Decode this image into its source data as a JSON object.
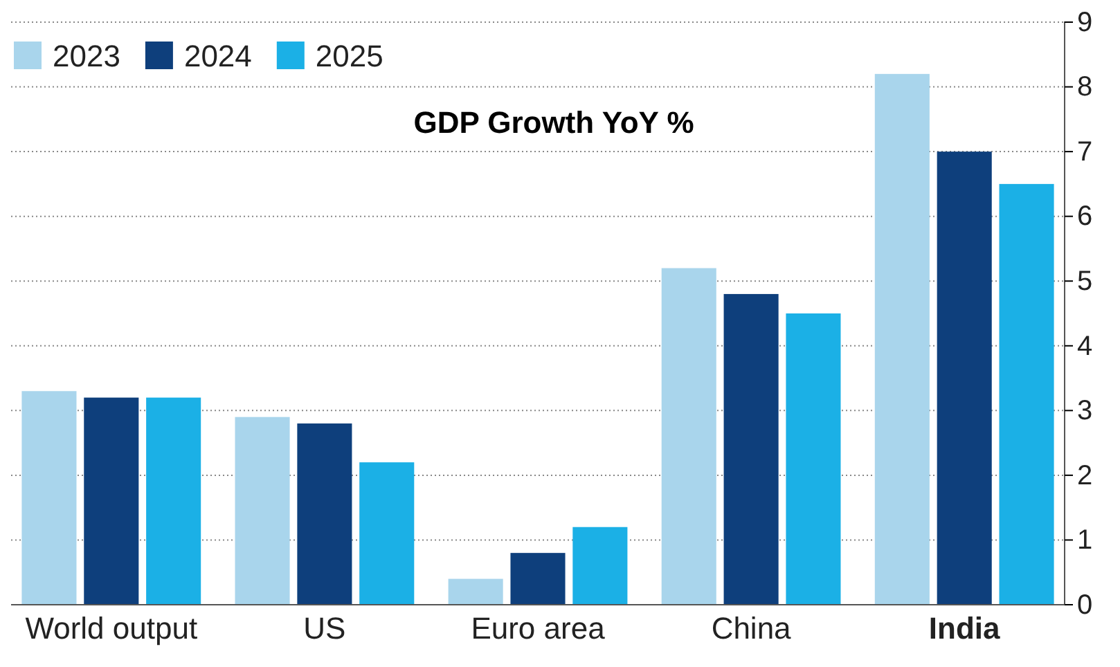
{
  "chart_data": {
    "type": "bar",
    "title": "GDP Growth YoY %",
    "categories": [
      "World output",
      "US",
      "Euro area",
      "China",
      "India"
    ],
    "series": [
      {
        "name": "2023",
        "color": "#a9d5ec",
        "values": [
          3.3,
          2.9,
          0.4,
          5.2,
          8.2
        ]
      },
      {
        "name": "2024",
        "color": "#0e3f7c",
        "values": [
          3.2,
          2.8,
          0.8,
          4.8,
          7.0
        ]
      },
      {
        "name": "2025",
        "color": "#1bb0e6",
        "values": [
          3.2,
          2.2,
          1.2,
          4.5,
          6.5
        ]
      }
    ],
    "ylim": [
      0,
      9
    ],
    "yticks": [
      0,
      1,
      2,
      3,
      4,
      5,
      6,
      7,
      8,
      9
    ],
    "grid": "y",
    "legend": "top left"
  }
}
